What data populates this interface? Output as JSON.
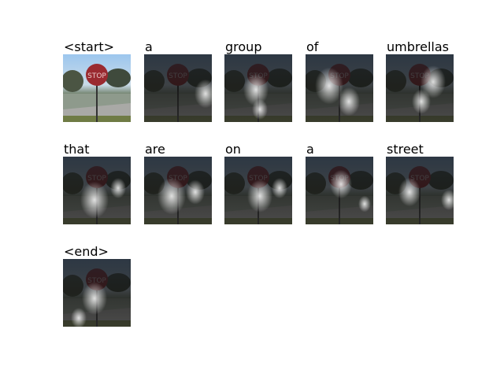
{
  "words": [
    "<start>",
    "a",
    "group",
    "of",
    "umbrellas",
    "that",
    "are",
    "on",
    "a",
    "street",
    "<end>"
  ]
}
